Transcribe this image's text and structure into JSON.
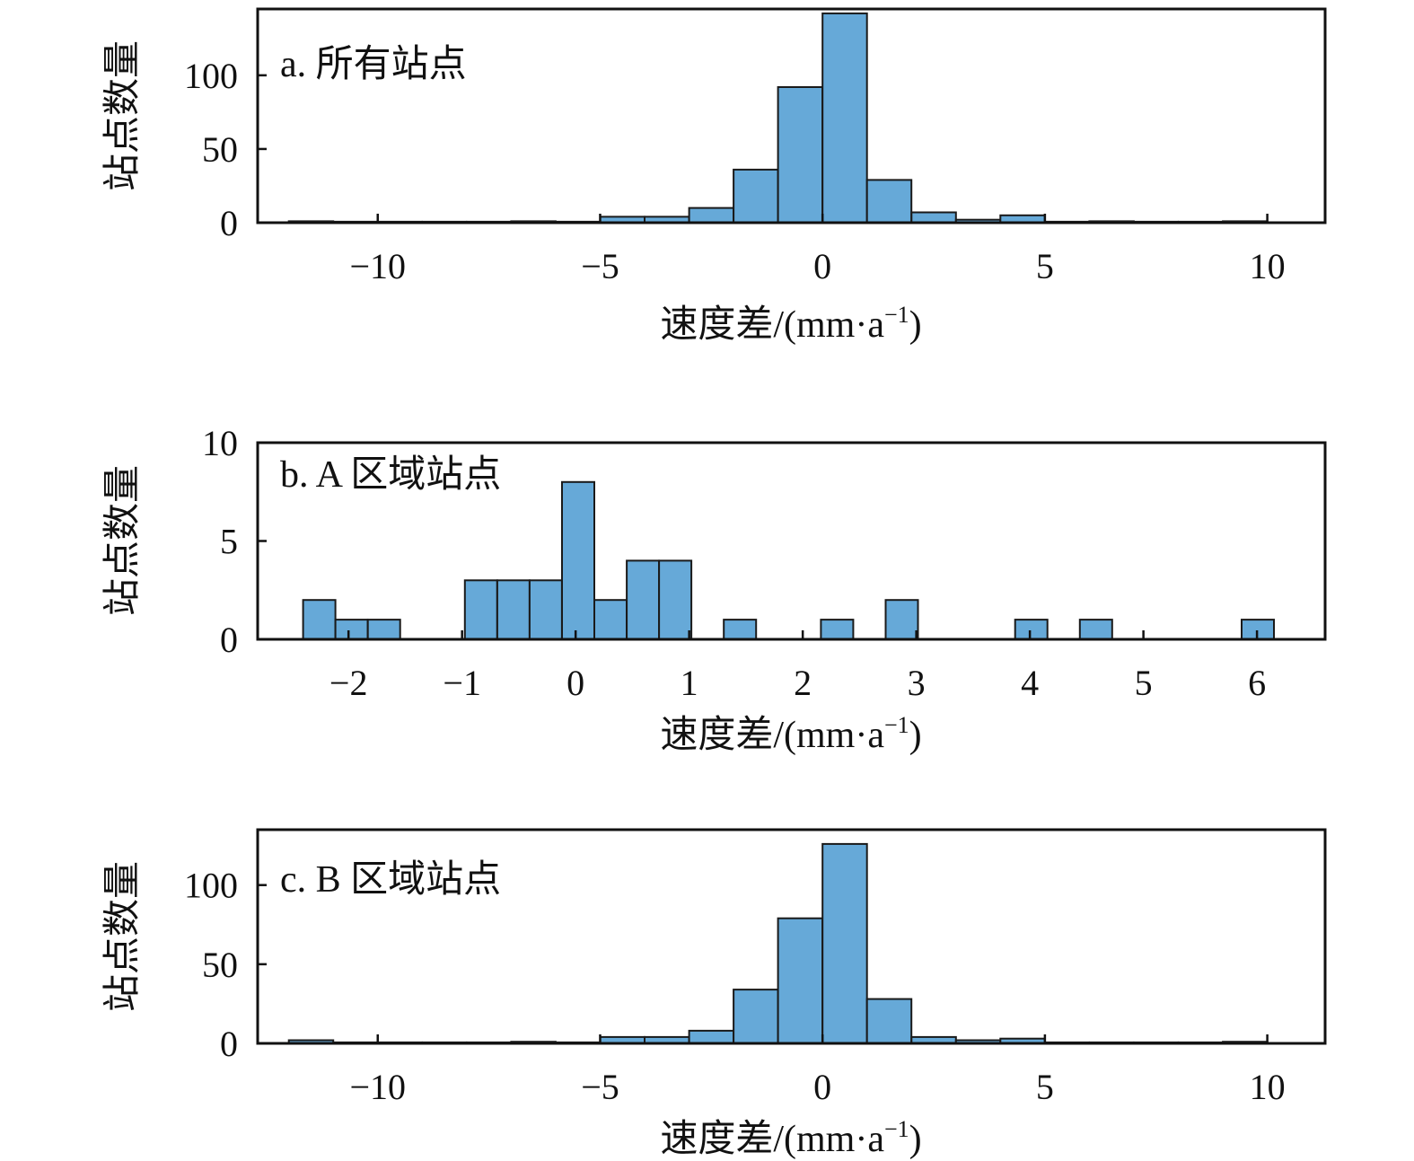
{
  "colors": {
    "bar_fill": "#66a9d8",
    "bar_edge": "#1a1a1a",
    "axis": "#111111",
    "background": "#ffffff"
  },
  "chart_data": [
    {
      "type": "bar",
      "title": "a. 所有站点",
      "xlabel": "速度差/(mm·a",
      "xlabel_sup": "−1",
      "xlabel_close": ")",
      "ylabel": "站点数量",
      "xlim": [
        -12.7,
        11.3
      ],
      "ylim": [
        0,
        145
      ],
      "xticks": [
        -10,
        -5,
        0,
        5,
        10
      ],
      "xtick_labels": [
        "−10",
        "−5",
        "0",
        "5",
        "10"
      ],
      "yticks": [
        0,
        50,
        100
      ],
      "ytick_labels": [
        "0",
        "50",
        "100"
      ],
      "grid": false,
      "bins": [
        {
          "x0": -12,
          "x1": -11,
          "value": 1
        },
        {
          "x0": -11,
          "x1": -10,
          "value": 0
        },
        {
          "x0": -10,
          "x1": -9,
          "value": 0
        },
        {
          "x0": -9,
          "x1": -8,
          "value": 0
        },
        {
          "x0": -8,
          "x1": -7,
          "value": 0
        },
        {
          "x0": -7,
          "x1": -6,
          "value": 1
        },
        {
          "x0": -6,
          "x1": -5,
          "value": 0
        },
        {
          "x0": -5,
          "x1": -4,
          "value": 4
        },
        {
          "x0": -4,
          "x1": -3,
          "value": 4
        },
        {
          "x0": -3,
          "x1": -2,
          "value": 10
        },
        {
          "x0": -2,
          "x1": -1,
          "value": 36
        },
        {
          "x0": -1,
          "x1": 0,
          "value": 92
        },
        {
          "x0": 0,
          "x1": 1,
          "value": 142
        },
        {
          "x0": 1,
          "x1": 2,
          "value": 29
        },
        {
          "x0": 2,
          "x1": 3,
          "value": 7
        },
        {
          "x0": 3,
          "x1": 4,
          "value": 2
        },
        {
          "x0": 4,
          "x1": 5,
          "value": 5
        },
        {
          "x0": 5,
          "x1": 6,
          "value": 0
        },
        {
          "x0": 6,
          "x1": 7,
          "value": 1
        },
        {
          "x0": 7,
          "x1": 8,
          "value": 0
        },
        {
          "x0": 8,
          "x1": 9,
          "value": 0
        },
        {
          "x0": 9,
          "x1": 10,
          "value": 1
        }
      ]
    },
    {
      "type": "bar",
      "title": "b. A 区域站点",
      "xlabel": "速度差/(mm·a",
      "xlabel_sup": "−1",
      "xlabel_close": ")",
      "ylabel": "站点数量",
      "xlim": [
        -2.8,
        6.6
      ],
      "ylim": [
        0,
        10
      ],
      "xticks": [
        -2,
        -1,
        0,
        1,
        2,
        3,
        4,
        5,
        6
      ],
      "xtick_labels": [
        "−2",
        "−1",
        "0",
        "1",
        "2",
        "3",
        "4",
        "5",
        "6"
      ],
      "yticks": [
        0,
        5,
        10
      ],
      "ytick_labels": [
        "0",
        "5",
        "10"
      ],
      "grid": false,
      "bins": [
        {
          "x0": -2.4,
          "x1": -2.115,
          "value": 2
        },
        {
          "x0": -2.115,
          "x1": -1.83,
          "value": 1
        },
        {
          "x0": -1.83,
          "x1": -1.545,
          "value": 1
        },
        {
          "x0": -0.975,
          "x1": -0.69,
          "value": 3
        },
        {
          "x0": -0.69,
          "x1": -0.405,
          "value": 3
        },
        {
          "x0": -0.405,
          "x1": -0.12,
          "value": 3
        },
        {
          "x0": -0.12,
          "x1": 0.165,
          "value": 8
        },
        {
          "x0": 0.165,
          "x1": 0.45,
          "value": 2
        },
        {
          "x0": 0.45,
          "x1": 0.735,
          "value": 4
        },
        {
          "x0": 0.735,
          "x1": 1.02,
          "value": 4
        },
        {
          "x0": 1.305,
          "x1": 1.59,
          "value": 1
        },
        {
          "x0": 2.16,
          "x1": 2.445,
          "value": 1
        },
        {
          "x0": 2.73,
          "x1": 3.015,
          "value": 2
        },
        {
          "x0": 3.87,
          "x1": 4.155,
          "value": 1
        },
        {
          "x0": 4.44,
          "x1": 4.725,
          "value": 1
        },
        {
          "x0": 5.865,
          "x1": 6.15,
          "value": 1
        }
      ]
    },
    {
      "type": "bar",
      "title": "c. B 区域站点",
      "xlabel": "速度差/(mm·a",
      "xlabel_sup": "−1",
      "xlabel_close": ")",
      "ylabel": "站点数量",
      "xlim": [
        -12.7,
        11.3
      ],
      "ylim": [
        0,
        135
      ],
      "xticks": [
        -10,
        -5,
        0,
        5,
        10
      ],
      "xtick_labels": [
        "−10",
        "−5",
        "0",
        "5",
        "10"
      ],
      "yticks": [
        0,
        50,
        100
      ],
      "ytick_labels": [
        "0",
        "50",
        "100"
      ],
      "grid": false,
      "bins": [
        {
          "x0": -12,
          "x1": -11,
          "value": 2
        },
        {
          "x0": -11,
          "x1": -10,
          "value": 0
        },
        {
          "x0": -10,
          "x1": -9,
          "value": 0
        },
        {
          "x0": -9,
          "x1": -8,
          "value": 0
        },
        {
          "x0": -8,
          "x1": -7,
          "value": 0
        },
        {
          "x0": -7,
          "x1": -6,
          "value": 1
        },
        {
          "x0": -6,
          "x1": -5,
          "value": 0
        },
        {
          "x0": -5,
          "x1": -4,
          "value": 4
        },
        {
          "x0": -4,
          "x1": -3,
          "value": 4
        },
        {
          "x0": -3,
          "x1": -2,
          "value": 8
        },
        {
          "x0": -2,
          "x1": -1,
          "value": 34
        },
        {
          "x0": -1,
          "x1": 0,
          "value": 79
        },
        {
          "x0": 0,
          "x1": 1,
          "value": 126
        },
        {
          "x0": 1,
          "x1": 2,
          "value": 28
        },
        {
          "x0": 2,
          "x1": 3,
          "value": 4
        },
        {
          "x0": 3,
          "x1": 4,
          "value": 2
        },
        {
          "x0": 4,
          "x1": 5,
          "value": 3
        },
        {
          "x0": 5,
          "x1": 6,
          "value": 0
        },
        {
          "x0": 6,
          "x1": 7,
          "value": 0
        },
        {
          "x0": 7,
          "x1": 8,
          "value": 0
        },
        {
          "x0": 8,
          "x1": 9,
          "value": 0
        },
        {
          "x0": 9,
          "x1": 10,
          "value": 1
        }
      ]
    }
  ]
}
